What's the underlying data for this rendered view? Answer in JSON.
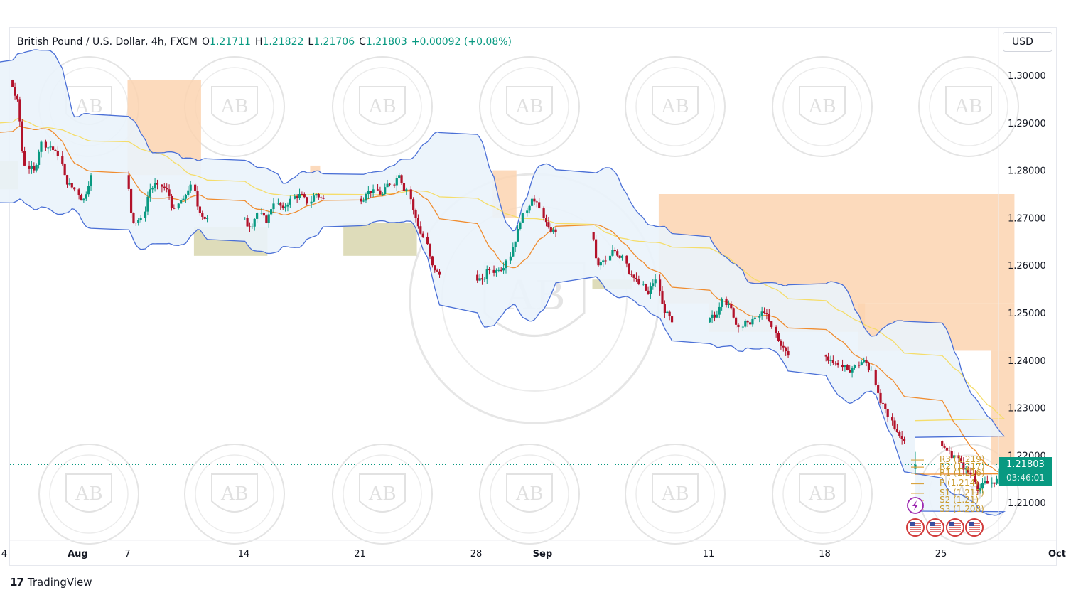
{
  "header": {
    "symbol": "British Pound / U.S. Dollar, 4h, FXCM",
    "open_label": "O",
    "open": "1.21711",
    "high_label": "H",
    "high": "1.21822",
    "low_label": "L",
    "low": "1.21706",
    "close_label": "C",
    "close": "1.21803",
    "change": "+0.00092 (+0.08%)"
  },
  "currency": "USD",
  "last_price": {
    "value": "1.21803",
    "countdown": "03:46:01",
    "color": "#089981"
  },
  "pivots": [
    {
      "label": "R3 (1.219)",
      "value": 1.219
    },
    {
      "label": "R2 (1.217)",
      "value": 1.2175
    },
    {
      "label": "R1 (1.216)",
      "value": 1.2162
    },
    {
      "label": "P (1.214)",
      "value": 1.214
    },
    {
      "label": "S1 (1.212)",
      "value": 1.212
    },
    {
      "label": "S2 (1.21)",
      "value": 1.2105
    },
    {
      "label": "S3 (1.208)",
      "value": 1.2085
    }
  ],
  "branding": {
    "logo_mark": "17",
    "logo_text": "TradingView"
  },
  "watermark": {
    "monogram": "AB",
    "text": "ARABIAN BUSINESS ACADEMY"
  },
  "colors": {
    "up": "#089981",
    "down": "#b2122a",
    "band": "#4a6fd6",
    "band_fill": "#eaf3fb",
    "mid": "#f08c2e",
    "slow": "#f5dd6a",
    "supply": "#fbd4b0",
    "demand": "#d8d6ae"
  },
  "chart_data": {
    "type": "candlestick",
    "title": "British Pound / U.S. Dollar, 4h, FXCM",
    "y_axis_ticks": [
      "1.30000",
      "1.29000",
      "1.28000",
      "1.27000",
      "1.26000",
      "1.25000",
      "1.24000",
      "1.23000",
      "1.22000",
      "1.21000"
    ],
    "ylim": [
      1.2035,
      1.3045
    ],
    "x_axis_ticks": [
      "4",
      "Aug",
      "7",
      "14",
      "21",
      "28",
      "Sep",
      "11",
      "18",
      "25",
      "Oct"
    ],
    "x_axis_dates": [
      "2023-07-31",
      "2023-08-04",
      "2023-08-07",
      "2023-08-14",
      "2023-08-21",
      "2023-08-28",
      "2023-09-01",
      "2023-09-11",
      "2023-09-18",
      "2023-09-25",
      "2023-10-02"
    ],
    "close_path": [
      [
        "2023-07-27",
        1.286
      ],
      [
        "2023-07-27",
        1.283
      ],
      [
        "2023-07-27",
        1.282
      ],
      [
        "2023-07-28",
        1.287
      ],
      [
        "2023-07-28",
        1.293
      ],
      [
        "2023-07-28",
        1.299
      ],
      [
        "2023-07-31",
        1.295
      ],
      [
        "2023-07-31",
        1.281
      ],
      [
        "2023-08-01",
        1.28
      ],
      [
        "2023-08-01",
        1.286
      ],
      [
        "2023-08-02",
        1.285
      ],
      [
        "2023-08-02",
        1.283
      ],
      [
        "2023-08-03",
        1.277
      ],
      [
        "2023-08-03",
        1.276
      ],
      [
        "2023-08-04",
        1.274
      ],
      [
        "2023-08-04",
        1.279
      ],
      [
        "2023-08-07",
        1.269
      ],
      [
        "2023-08-07",
        1.27
      ],
      [
        "2023-08-08",
        1.276
      ],
      [
        "2023-08-08",
        1.277
      ],
      [
        "2023-08-09",
        1.276
      ],
      [
        "2023-08-09",
        1.272
      ],
      [
        "2023-08-10",
        1.274
      ],
      [
        "2023-08-10",
        1.277
      ],
      [
        "2023-08-11",
        1.271
      ],
      [
        "2023-08-11",
        1.27
      ],
      [
        "2023-08-14",
        1.268
      ],
      [
        "2023-08-14",
        1.271
      ],
      [
        "2023-08-15",
        1.269
      ],
      [
        "2023-08-15",
        1.273
      ],
      [
        "2023-08-16",
        1.272
      ],
      [
        "2023-08-16",
        1.274
      ],
      [
        "2023-08-17",
        1.275
      ],
      [
        "2023-08-17",
        1.273
      ],
      [
        "2023-08-18",
        1.275
      ],
      [
        "2023-08-18",
        1.274
      ],
      [
        "2023-08-21",
        1.275
      ],
      [
        "2023-08-21",
        1.276
      ],
      [
        "2023-08-22",
        1.275
      ],
      [
        "2023-08-22",
        1.277
      ],
      [
        "2023-08-23",
        1.279
      ],
      [
        "2023-08-23",
        1.276
      ],
      [
        "2023-08-24",
        1.27
      ],
      [
        "2023-08-24",
        1.266
      ],
      [
        "2023-08-25",
        1.26
      ],
      [
        "2023-08-25",
        1.258
      ],
      [
        "2023-08-28",
        1.257
      ],
      [
        "2023-08-28",
        1.259
      ],
      [
        "2023-08-29",
        1.259
      ],
      [
        "2023-08-29",
        1.261
      ],
      [
        "2023-08-30",
        1.265
      ],
      [
        "2023-08-30",
        1.271
      ],
      [
        "2023-08-31",
        1.274
      ],
      [
        "2023-08-31",
        1.272
      ],
      [
        "2023-09-01",
        1.268
      ],
      [
        "2023-09-01",
        1.267
      ],
      [
        "2023-09-04",
        1.26
      ],
      [
        "2023-09-04",
        1.261
      ],
      [
        "2023-09-05",
        1.263
      ],
      [
        "2023-09-05",
        1.262
      ],
      [
        "2023-09-06",
        1.258
      ],
      [
        "2023-09-06",
        1.256
      ],
      [
        "2023-09-07",
        1.254
      ],
      [
        "2023-09-07",
        1.257
      ],
      [
        "2023-09-08",
        1.25
      ],
      [
        "2023-09-08",
        1.248
      ],
      [
        "2023-09-11",
        1.249
      ],
      [
        "2023-09-11",
        1.253
      ],
      [
        "2023-09-12",
        1.251
      ],
      [
        "2023-09-12",
        1.247
      ],
      [
        "2023-09-13",
        1.248
      ],
      [
        "2023-09-13",
        1.249
      ],
      [
        "2023-09-14",
        1.25
      ],
      [
        "2023-09-14",
        1.247
      ],
      [
        "2023-09-15",
        1.243
      ],
      [
        "2023-09-15",
        1.241
      ],
      [
        "2023-09-18",
        1.24
      ],
      [
        "2023-09-18",
        1.239
      ],
      [
        "2023-09-19",
        1.238
      ],
      [
        "2023-09-19",
        1.239
      ],
      [
        "2023-09-20",
        1.24
      ],
      [
        "2023-09-20",
        1.238
      ],
      [
        "2023-09-21",
        1.231
      ],
      [
        "2023-09-21",
        1.228
      ],
      [
        "2023-09-22",
        1.225
      ],
      [
        "2023-09-22",
        1.223
      ],
      [
        "2023-09-25",
        1.221
      ],
      [
        "2023-09-25",
        1.22
      ],
      [
        "2023-09-26",
        1.217
      ],
      [
        "2023-09-26",
        1.216
      ],
      [
        "2023-09-27",
        1.213
      ],
      [
        "2023-09-27",
        1.214
      ],
      [
        "2023-09-28",
        1.215
      ],
      [
        "2023-09-28",
        1.218
      ]
    ],
    "last": {
      "open": 1.21711,
      "high": 1.21822,
      "low": 1.21706,
      "close": 1.21803
    },
    "overlays": [
      "Bollinger Bands",
      "Moving Average",
      "Slow Moving Average",
      "Pivot Points"
    ],
    "supply_zones": [
      {
        "start": "2023-07-27",
        "end": "2023-07-27",
        "low": 1.287,
        "high": 1.3
      },
      {
        "start": "2023-08-07",
        "end": "2023-08-11",
        "low": 1.279,
        "high": 1.299
      },
      {
        "start": "2023-08-18",
        "end": "2023-08-18",
        "low": 1.278,
        "high": 1.281
      },
      {
        "start": "2023-08-23",
        "end": "2023-08-23",
        "low": 1.278,
        "high": 1.279
      },
      {
        "start": "2023-08-29",
        "end": "2023-08-30",
        "low": 1.27,
        "high": 1.28
      },
      {
        "start": "2023-09-08",
        "end": "2023-09-29",
        "low": 1.252,
        "high": 1.275
      },
      {
        "start": "2023-09-11",
        "end": "2023-09-20",
        "low": 1.246,
        "high": 1.252
      },
      {
        "start": "2023-09-20",
        "end": "2023-09-29",
        "low": 1.242,
        "high": 1.252
      },
      {
        "start": "2023-09-28",
        "end": "2023-09-29",
        "low": 1.218,
        "high": 1.242
      }
    ],
    "demand_zones": [
      {
        "start": "2023-07-29",
        "end": "2023-07-31",
        "low": 1.276,
        "high": 1.282
      },
      {
        "start": "2023-08-11",
        "end": "2023-08-15",
        "low": 1.262,
        "high": 1.268
      },
      {
        "start": "2023-08-20",
        "end": "2023-08-24",
        "low": 1.262,
        "high": 1.269
      },
      {
        "start": "2023-09-04",
        "end": "2023-09-06",
        "low": 1.255,
        "high": 1.257
      }
    ],
    "grid": false,
    "legend": "top-left"
  }
}
